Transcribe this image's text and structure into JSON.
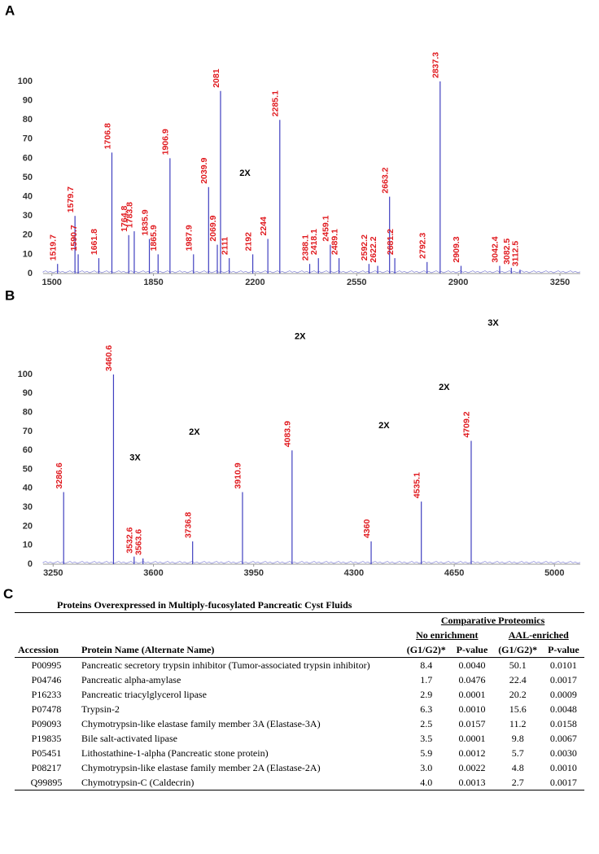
{
  "chart_data": [
    {
      "type": "spectrum",
      "label": "A",
      "color": "#4040c0",
      "xlim": [
        1470,
        3320
      ],
      "ylim": [
        0,
        100
      ],
      "xticks": [
        1500,
        1850,
        2200,
        2550,
        2900,
        3250
      ],
      "yticks": [
        0,
        10,
        20,
        30,
        40,
        50,
        60,
        70,
        80,
        90,
        100
      ],
      "x": [
        1519.7,
        1579.7,
        1590.7,
        1661.8,
        1706.8,
        1764.8,
        1783.8,
        1835.9,
        1865.9,
        1906.9,
        1987.9,
        2039.9,
        2069.9,
        2081.0,
        2111.0,
        2192.0,
        2244.0,
        2285.1,
        2388.1,
        2418.1,
        2459.1,
        2489.1,
        2592.2,
        2622.2,
        2663.2,
        2681.2,
        2792.3,
        2837.3,
        2909.3,
        3042.4,
        3082.5,
        3112.5
      ],
      "values": [
        5,
        30,
        10,
        8,
        63,
        20,
        22,
        18,
        10,
        60,
        10,
        45,
        15,
        95,
        8,
        10,
        18,
        80,
        5,
        8,
        15,
        8,
        5,
        4,
        40,
        8,
        6,
        100,
        4,
        4,
        3,
        2
      ],
      "annotations": [
        {
          "text": "2X",
          "x": 2165,
          "y": 52
        }
      ]
    },
    {
      "type": "spectrum",
      "label": "B",
      "color": "#4040c0",
      "xlim": [
        3215,
        5090
      ],
      "ylim": [
        0,
        100
      ],
      "xticks": [
        3250,
        3600,
        3950,
        4300,
        4650,
        5000
      ],
      "yticks": [
        0,
        10,
        20,
        30,
        40,
        50,
        60,
        70,
        80,
        90,
        100
      ],
      "x": [
        3286.6,
        3460.6,
        3532.6,
        3563.6,
        3736.8,
        3910.9,
        4083.9,
        4360.0,
        4535.1,
        4709.2
      ],
      "values": [
        38,
        100,
        4,
        3,
        12,
        38,
        60,
        12,
        33,
        65
      ],
      "annotations": [
        {
          "text": "3X",
          "x": 3536,
          "y": 56
        },
        {
          "text": "2X",
          "x": 3743,
          "y": 69.5
        },
        {
          "text": "2X",
          "x": 4112,
          "y": 120
        },
        {
          "text": "2X",
          "x": 4405,
          "y": 73
        },
        {
          "text": "2X",
          "x": 4615,
          "y": 93
        },
        {
          "text": "3X",
          "x": 4786,
          "y": 127
        }
      ]
    }
  ],
  "table": {
    "label": "C",
    "title": "Proteins Overexpressed in Multiply-fucosylated Pancreatic Cyst Fluids",
    "group": "Comparative Proteomics",
    "subgroups": [
      "No enrichment",
      "AAL-enriched"
    ],
    "columns": [
      "Accession",
      "Protein Name (Alternate Name)",
      "(G1/G2)*",
      "P-value",
      "(G1/G2)*",
      "P-value"
    ],
    "rows": [
      [
        "P00995",
        "Pancreatic secretory trypsin inhibitor (Tumor-associated trypsin inhibitor)",
        "8.4",
        "0.0040",
        "50.1",
        "0.0101"
      ],
      [
        "P04746",
        "Pancreatic alpha-amylase",
        "1.7",
        "0.0476",
        "22.4",
        "0.0017"
      ],
      [
        "P16233",
        "Pancreatic triacylglycerol lipase",
        "2.9",
        "0.0001",
        "20.2",
        "0.0009"
      ],
      [
        "P07478",
        "Trypsin-2",
        "6.3",
        "0.0010",
        "15.6",
        "0.0048"
      ],
      [
        "P09093",
        "Chymotrypsin-like elastase family member 3A (Elastase-3A)",
        "2.5",
        "0.0157",
        "11.2",
        "0.0158"
      ],
      [
        "P19835",
        "Bile salt-activated lipase",
        "3.5",
        "0.0001",
        "9.8",
        "0.0067"
      ],
      [
        "P05451",
        "Lithostathine-1-alpha (Pancreatic stone protein)",
        "5.9",
        "0.0012",
        "5.7",
        "0.0030"
      ],
      [
        "P08217",
        "Chymotrypsin-like elastase family member 2A (Elastase-2A)",
        "3.0",
        "0.0022",
        "4.8",
        "0.0010"
      ],
      [
        "Q99895",
        "Chymotrypsin-C (Caldecrin)",
        "4.0",
        "0.0013",
        "2.7",
        "0.0017"
      ]
    ]
  }
}
